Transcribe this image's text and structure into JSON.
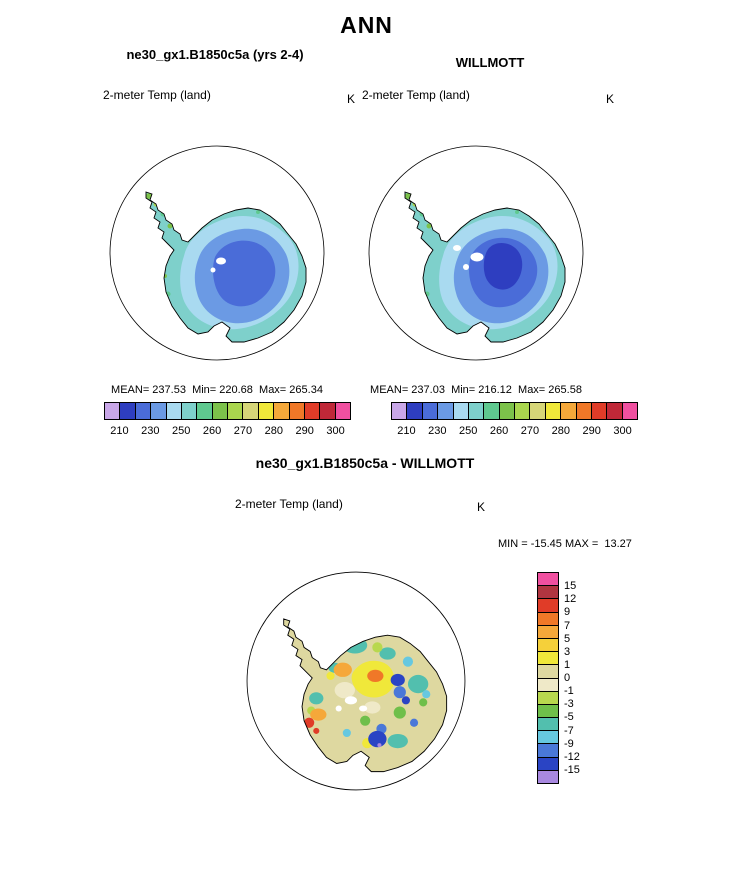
{
  "title": "ANN",
  "panels": {
    "left": {
      "title": "ne30_gx1.B1850c5a (yrs 2-4)",
      "field": "2-meter Temp (land)",
      "units": "K",
      "stats": "MEAN= 237.53  Min= 220.68  Max= 265.34"
    },
    "right": {
      "title": "WILLMOTT",
      "field": "2-meter Temp (land)",
      "units": "K",
      "stats": "MEAN= 237.03  Min= 216.12  Max= 265.58"
    },
    "diff": {
      "title": "ne30_gx1.B1850c5a - WILLMOTT",
      "field": "2-meter Temp (land)",
      "units": "K",
      "minmax": "MIN = -15.45 MAX =  13.27"
    }
  },
  "colorbar_abs": {
    "ticks": [
      "210",
      "230",
      "250",
      "260",
      "270",
      "280",
      "290",
      "300"
    ],
    "colors": [
      "#c9a7e8",
      "#2e3ec0",
      "#4a6cd8",
      "#6b9ae4",
      "#a9daf0",
      "#7ed0cb",
      "#5fc98f",
      "#7cc24a",
      "#aad64e",
      "#d6d678",
      "#f0e83a",
      "#f5a83a",
      "#f07828",
      "#e03c28",
      "#c02838",
      "#f050a0"
    ]
  },
  "colorbar_diff": {
    "ticks": [
      "15",
      "12",
      "9",
      "7",
      "5",
      "3",
      "1",
      "0",
      "-1",
      "-3",
      "-5",
      "-7",
      "-9",
      "-12",
      "-15"
    ],
    "colors": [
      "#f050a0",
      "#b03540",
      "#e03c28",
      "#f07828",
      "#f5a83a",
      "#f5d03a",
      "#f0e83a",
      "#ded8a0",
      "#efe9c8",
      "#b8d84e",
      "#6fbf4a",
      "#52bfae",
      "#66c8e0",
      "#4a78d8",
      "#2a44c4",
      "#a888e0"
    ]
  },
  "chart_data": [
    {
      "type": "heatmap",
      "subtype": "south-polar-stereographic-map",
      "region": "Antarctica",
      "title": "ne30_gx1.B1850c5a (yrs 2-4)",
      "variable": "2-meter Temp (land)",
      "units": "K",
      "mean": 237.53,
      "min": 220.68,
      "max": 265.34,
      "colorbar_ticks": [
        210,
        230,
        250,
        260,
        270,
        280,
        290,
        300
      ],
      "legend_position": "bottom"
    },
    {
      "type": "heatmap",
      "subtype": "south-polar-stereographic-map",
      "region": "Antarctica",
      "title": "WILLMOTT",
      "variable": "2-meter Temp (land)",
      "units": "K",
      "mean": 237.03,
      "min": 216.12,
      "max": 265.58,
      "colorbar_ticks": [
        210,
        230,
        250,
        260,
        270,
        280,
        290,
        300
      ],
      "legend_position": "bottom"
    },
    {
      "type": "heatmap",
      "subtype": "south-polar-stereographic-map",
      "region": "Antarctica",
      "title": "ne30_gx1.B1850c5a - WILLMOTT",
      "variable": "2-meter Temp (land)",
      "units": "K",
      "min": -15.45,
      "max": 13.27,
      "colorbar_ticks": [
        15,
        12,
        9,
        7,
        5,
        3,
        1,
        0,
        -1,
        -3,
        -5,
        -7,
        -9,
        -12,
        -15
      ],
      "legend_position": "right"
    }
  ]
}
